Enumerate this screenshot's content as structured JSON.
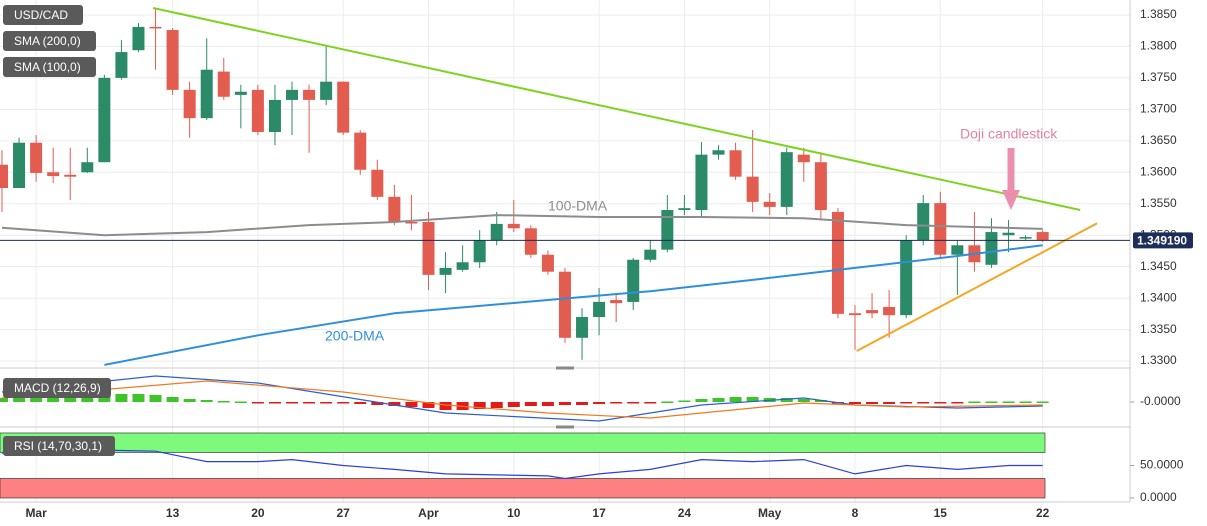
{
  "chart_data": {
    "type": "candlestick",
    "symbol": "USD/CAD",
    "up_color": "#2b8a67",
    "down_color": "#e25c50",
    "xlim": [
      -0.117,
      66.12
    ],
    "xticks": [
      {
        "value": 2,
        "label": "Mar"
      },
      {
        "value": 10,
        "label": "13"
      },
      {
        "value": 15,
        "label": "20"
      },
      {
        "value": 20,
        "label": "27"
      },
      {
        "value": 25,
        "label": "Apr"
      },
      {
        "value": 30,
        "label": "10"
      },
      {
        "value": 35,
        "label": "17"
      },
      {
        "value": 40,
        "label": "24"
      },
      {
        "value": 45,
        "label": "May"
      },
      {
        "value": 50,
        "label": "8"
      },
      {
        "value": 55,
        "label": "15"
      },
      {
        "value": 61,
        "label": "22"
      }
    ],
    "ylim": [
      1.3289,
      1.3869
    ],
    "yticks": [
      {
        "value": 1.33,
        "label": "1.3300"
      },
      {
        "value": 1.335,
        "label": "1.3350"
      },
      {
        "value": 1.34,
        "label": "1.3400"
      },
      {
        "value": 1.345,
        "label": "1.3450"
      },
      {
        "value": 1.35,
        "label": "1.3500"
      },
      {
        "value": 1.355,
        "label": "1.3550"
      },
      {
        "value": 1.36,
        "label": "1.3600"
      },
      {
        "value": 1.365,
        "label": "1.3650"
      },
      {
        "value": 1.37,
        "label": "1.3700"
      },
      {
        "value": 1.375,
        "label": "1.3750"
      },
      {
        "value": 1.38,
        "label": "1.3800"
      },
      {
        "value": 1.385,
        "label": "1.3850"
      }
    ],
    "grid": true,
    "open": [
      1.3612,
      1.3575,
      1.3647,
      1.36,
      1.3596,
      1.36,
      1.3616,
      1.375,
      1.3794,
      1.3831,
      1.3826,
      1.3731,
      1.3686,
      1.376,
      1.3723,
      1.3731,
      1.3664,
      1.3715,
      1.3731,
      1.3715,
      1.3744,
      1.3663,
      1.3604,
      1.3561,
      1.3521,
      1.3521,
      1.3437,
      1.3445,
      1.3457,
      1.3492,
      1.3518,
      1.3511,
      1.3469,
      1.3442,
      1.3337,
      1.337,
      1.3397,
      1.3394,
      1.3461,
      1.3477,
      1.354,
      1.354,
      1.3628,
      1.3635,
      1.3593,
      1.3553,
      1.3545,
      1.3628,
      1.3616,
      1.3537,
      1.3376,
      1.3381,
      1.3386,
      1.3373,
      1.3492,
      1.3551,
      1.3469,
      1.3484,
      1.3453,
      1.35,
      1.3496,
      1.3505
    ],
    "high": [
      1.3635,
      1.3655,
      1.3659,
      1.3639,
      1.3639,
      1.3639,
      1.3755,
      1.381,
      1.3837,
      1.3861,
      1.3829,
      1.3744,
      1.3813,
      1.3782,
      1.3739,
      1.3739,
      1.3739,
      1.3744,
      1.3739,
      1.3802,
      1.3744,
      1.3667,
      1.362,
      1.358,
      1.3564,
      1.3537,
      1.3473,
      1.3484,
      1.3508,
      1.3537,
      1.3556,
      1.3516,
      1.3476,
      1.3448,
      1.3384,
      1.3416,
      1.3405,
      1.3464,
      1.3492,
      1.3564,
      1.3564,
      1.3648,
      1.3643,
      1.3647,
      1.3667,
      1.3567,
      1.3639,
      1.3639,
      1.3632,
      1.3543,
      1.3389,
      1.3408,
      1.3413,
      1.35,
      1.3564,
      1.3569,
      1.3492,
      1.3537,
      1.3527,
      1.3524,
      1.35,
      1.3508
    ],
    "low": [
      1.3537,
      1.3575,
      1.3585,
      1.3583,
      1.3556,
      1.3599,
      1.3616,
      1.3747,
      1.3791,
      1.3763,
      1.3723,
      1.3655,
      1.3683,
      1.3715,
      1.367,
      1.3659,
      1.3643,
      1.3659,
      1.3631,
      1.3707,
      1.3659,
      1.3596,
      1.3556,
      1.3516,
      1.3508,
      1.3413,
      1.3408,
      1.3442,
      1.3448,
      1.3484,
      1.3505,
      1.3464,
      1.3437,
      1.3329,
      1.3302,
      1.3341,
      1.3362,
      1.3381,
      1.3457,
      1.3473,
      1.3532,
      1.3527,
      1.362,
      1.3588,
      1.3537,
      1.3532,
      1.3532,
      1.3585,
      1.3524,
      1.3368,
      1.3318,
      1.3368,
      1.3337,
      1.3368,
      1.3484,
      1.3464,
      1.3405,
      1.3442,
      1.3448,
      1.3473,
      1.3492,
      1.3489
    ],
    "close": [
      1.3575,
      1.3647,
      1.3599,
      1.3594,
      1.3593,
      1.3616,
      1.375,
      1.3791,
      1.3831,
      1.3829,
      1.3731,
      1.3686,
      1.3763,
      1.372,
      1.3728,
      1.3664,
      1.3715,
      1.3731,
      1.3715,
      1.3744,
      1.3663,
      1.3604,
      1.3561,
      1.3521,
      1.3519,
      1.3437,
      1.3448,
      1.3457,
      1.3492,
      1.3518,
      1.3511,
      1.3469,
      1.3442,
      1.3337,
      1.337,
      1.3394,
      1.3392,
      1.3461,
      1.3477,
      1.354,
      1.3543,
      1.3628,
      1.3635,
      1.3593,
      1.3553,
      1.3545,
      1.3632,
      1.3616,
      1.354,
      1.3375,
      1.3373,
      1.3376,
      1.3373,
      1.3492,
      1.3551,
      1.3469,
      1.3484,
      1.3457,
      1.3505,
      1.3504,
      1.3497,
      1.3492
    ],
    "series": [
      {
        "name": "SMA (200,0)",
        "label": "200-DMA",
        "color": "#2f8fdd",
        "x": [
          6,
          15,
          23,
          32,
          38,
          44,
          50,
          56,
          61
        ],
        "values": [
          1.3294,
          1.3341,
          1.3376,
          1.3397,
          1.3411,
          1.3429,
          1.3448,
          1.3467,
          1.3484
        ]
      },
      {
        "name": "SMA (100,0)",
        "label": "100-DMA",
        "color": "#8c8c8c",
        "x": [
          0,
          6,
          12,
          18,
          23,
          29,
          35,
          41,
          47,
          53,
          61
        ],
        "values": [
          1.3512,
          1.35,
          1.3505,
          1.3516,
          1.3521,
          1.3532,
          1.3529,
          1.3529,
          1.3527,
          1.3516,
          1.351
        ]
      }
    ],
    "trendlines": [
      {
        "color": "#7ed321",
        "x": [
          8.86,
          63.2
        ],
        "values": [
          1.3861,
          1.354
        ]
      },
      {
        "color": "#f5a623",
        "x": [
          50.1,
          64.2
        ],
        "values": [
          1.3316,
          1.3519
        ]
      }
    ],
    "current_price": {
      "value": 1.34919,
      "label": "1.349190"
    },
    "annotation": "Doji candlestick",
    "macd": {
      "label": "MACD (12,26,9)",
      "ylim": [
        -0.0046,
        0.006
      ],
      "yticks": [
        {
          "value": 0,
          "label": "-0.0000"
        }
      ],
      "up_color": "#3cc428",
      "down_color": "#e31a1a",
      "histogram": [
        0.0008,
        0.001,
        0.0012,
        0.0012,
        0.0012,
        0.0012,
        0.0014,
        0.0016,
        0.0016,
        0.0014,
        0.001,
        0.0006,
        0.0004,
        0.0002,
        0.0001,
        -0.0001,
        -0.0002,
        -0.0002,
        -0.0002,
        -0.0002,
        -0.0003,
        -0.0004,
        -0.0006,
        -0.0008,
        -0.001,
        -0.0012,
        -0.0016,
        -0.0016,
        -0.0014,
        -0.0012,
        -0.001,
        -0.0008,
        -0.0008,
        -0.0006,
        -0.0006,
        -0.0004,
        -0.0003,
        -0.0002,
        -0.0001,
        0.0001,
        0.0003,
        0.0006,
        0.0008,
        0.001,
        0.001,
        0.0008,
        0.0008,
        0.0006,
        0.0004,
        -0.0001,
        -0.0004,
        -0.0004,
        -0.0004,
        -0.0003,
        -0.0002,
        -0.0001,
        -0.0001,
        0.0001,
        0.0001,
        0.0001,
        0.0001,
        0.0001
      ],
      "lines": [
        {
          "color": "#2a5fd0",
          "x": [
            0,
            9,
            15,
            23,
            26,
            35,
            41,
            47,
            50,
            56,
            61
          ],
          "values": [
            0.002,
            0.0052,
            0.0038,
            -0.0006,
            -0.0022,
            -0.0038,
            -0.0006,
            0.0008,
            -0.0006,
            -0.0012,
            -0.0008
          ]
        },
        {
          "color": "#f07a20",
          "x": [
            0,
            12,
            20,
            26,
            32,
            38,
            47,
            53,
            61
          ],
          "values": [
            0.0008,
            0.0042,
            0.002,
            -0.0006,
            -0.0022,
            -0.0032,
            -0.0002,
            -0.001,
            -0.0006
          ]
        }
      ]
    },
    "rsi": {
      "label": "RSI (14,70,30,1)",
      "ylim": [
        -3.1,
        101.5
      ],
      "yticks": [
        {
          "value": 50,
          "label": "50.0000"
        },
        {
          "value": 0,
          "label": "0.0000"
        }
      ],
      "bands": [
        {
          "range": [
            70,
            100
          ],
          "color": "#7dfa7d"
        },
        {
          "range": [
            0,
            30
          ],
          "color": "#ff8080"
        }
      ],
      "line": {
        "color": "#2a3fe0",
        "x": [
          0,
          3,
          9,
          12,
          15,
          17,
          20,
          23,
          26,
          32,
          33,
          35,
          38,
          41,
          44,
          47,
          50,
          53,
          56,
          59,
          61
        ],
        "values": [
          69,
          75,
          72,
          56,
          56,
          59,
          50,
          44,
          37,
          34,
          30,
          37,
          44,
          59,
          56,
          59,
          37,
          50,
          44,
          50,
          50
        ]
      }
    }
  }
}
